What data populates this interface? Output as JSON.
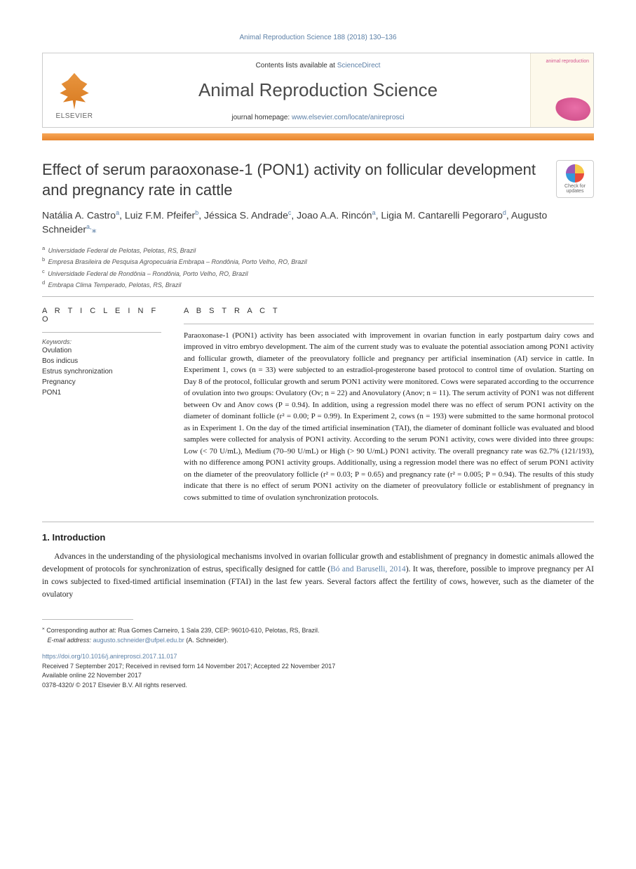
{
  "citation": "Animal Reproduction Science 188 (2018) 130–136",
  "header": {
    "publisher": "ELSEVIER",
    "contents_prefix": "Contents lists available at ",
    "contents_link": "ScienceDirect",
    "journal": "Animal Reproduction Science",
    "homepage_prefix": "journal homepage: ",
    "homepage_link": "www.elsevier.com/locate/anireprosci",
    "cover": "animal reproduction"
  },
  "crossmark": {
    "line1": "Check for",
    "line2": "updates"
  },
  "article": {
    "title": "Effect of serum paraoxonase-1 (PON1) activity on follicular development and pregnancy rate in cattle",
    "authors_html": "Natália A. Castro<sup>a</sup>, Luiz F.M. Pfeifer<sup>b</sup>, Jéssica S. Andrade<sup>c</sup>, Joao A.A. Rincón<sup>a</sup>, Ligia M. Cantarelli Pegoraro<sup>d</sup>, Augusto Schneider<sup>a,</sup><span class='corr'>⁎</span>",
    "affiliations": [
      {
        "sup": "a",
        "text": "Universidade Federal de Pelotas, Pelotas, RS, Brazil"
      },
      {
        "sup": "b",
        "text": "Empresa Brasileira de Pesquisa Agropecuária Embrapa – Rondônia, Porto Velho, RO, Brazil"
      },
      {
        "sup": "c",
        "text": "Universidade Federal de Rondônia – Rondônia, Porto Velho, RO, Brazil"
      },
      {
        "sup": "d",
        "text": "Embrapa Clima Temperado, Pelotas, RS, Brazil"
      }
    ]
  },
  "info": {
    "heading": "A R T I C L E  I N F O",
    "keywords_label": "Keywords:",
    "keywords": [
      "Ovulation",
      "Bos indicus",
      "Estrus synchronization",
      "Pregnancy",
      "PON1"
    ]
  },
  "abstract": {
    "heading": "A B S T R A C T",
    "text": "Paraoxonase-1 (PON1) activity has been associated with improvement in ovarian function in early postpartum dairy cows and improved in vitro embryo development. The aim of the current study was to evaluate the potential association among PON1 activity and follicular growth, diameter of the preovulatory follicle and pregnancy per artificial insemination (AI) service in cattle. In Experiment 1, cows (n = 33) were subjected to an estradiol-progesterone based protocol to control time of ovulation. Starting on Day 8 of the protocol, follicular growth and serum PON1 activity were monitored. Cows were separated according to the occurrence of ovulation into two groups: Ovulatory (Ov; n = 22) and Anovulatory (Anov; n = 11). The serum activity of PON1 was not different between Ov and Anov cows (P = 0.94). In addition, using a regression model there was no effect of serum PON1 activity on the diameter of dominant follicle (r² = 0.00; P = 0.99). In Experiment 2, cows (n = 193) were submitted to the same hormonal protocol as in Experiment 1. On the day of the timed artificial insemination (TAI), the diameter of dominant follicle was evaluated and blood samples were collected for analysis of PON1 activity. According to the serum PON1 activity, cows were divided into three groups: Low (< 70 U/mL), Medium (70–90 U/mL) or High (> 90 U/mL) PON1 activity. The overall pregnancy rate was 62.7% (121/193), with no difference among PON1 activity groups. Additionally, using a regression model there was no effect of serum PON1 activity on the diameter of the preovulatory follicle (r² = 0.03; P = 0.65) and pregnancy rate (r² = 0.005; P = 0.94). The results of this study indicate that there is no effect of serum PON1 activity on the diameter of preovulatory follicle or establishment of pregnancy in cows submitted to time of ovulation synchronization protocols."
  },
  "introduction": {
    "heading": "1. Introduction",
    "p1_pre": "Advances in the understanding of the physiological mechanisms involved in ovarian follicular growth and establishment of pregnancy in domestic animals allowed the development of protocols for synchronization of estrus, specifically designed for cattle (",
    "p1_link": "Bó and Baruselli, 2014",
    "p1_post": "). It was, therefore, possible to improve pregnancy per AI in cows subjected to fixed-timed artificial insemination (FTAI) in the last few years. Several factors affect the fertility of cows, however, such as the diameter of the ovulatory"
  },
  "footnote": {
    "corr_label": "⁎",
    "corr_text": "Corresponding author at: Rua Gomes Carneiro, 1 Sala 239, CEP: 96010-610, Pelotas, RS, Brazil.",
    "email_label": "E-mail address:",
    "email": "augusto.schneider@ufpel.edu.br",
    "email_person": "(A. Schneider)."
  },
  "footer": {
    "doi": "https://doi.org/10.1016/j.anireprosci.2017.11.017",
    "received": "Received 7 September 2017; Received in revised form 14 November 2017; Accepted 22 November 2017",
    "online": "Available online 22 November 2017",
    "copyright": "0378-4320/ © 2017 Elsevier B.V. All rights reserved."
  },
  "colors": {
    "link": "#5b7fa6",
    "orange_bar": "#e8852e",
    "text": "#1a1a1a"
  }
}
